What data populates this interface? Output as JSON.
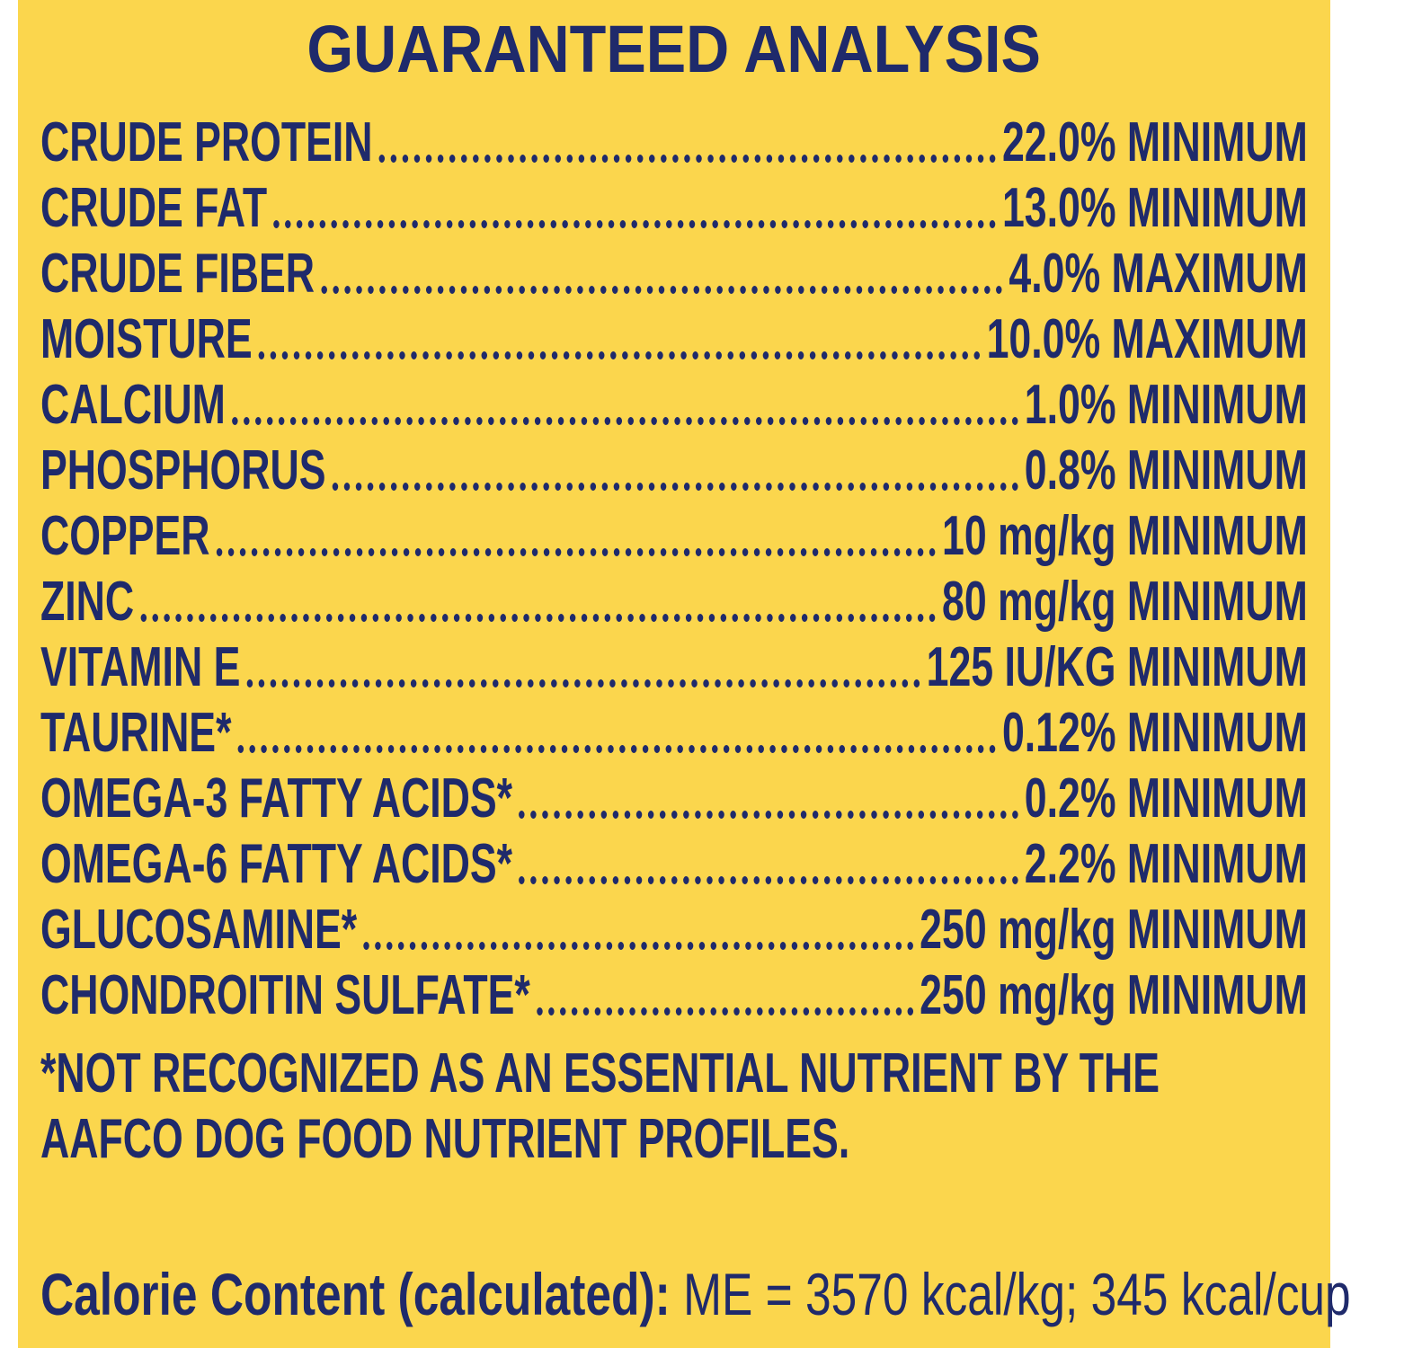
{
  "title": "GUARANTEED ANALYSIS",
  "rows": [
    {
      "name": "CRUDE PROTEIN",
      "value": "22.0% MINIMUM"
    },
    {
      "name": "CRUDE FAT",
      "value": "13.0% MINIMUM"
    },
    {
      "name": "CRUDE FIBER",
      "value": "4.0% MAXIMUM"
    },
    {
      "name": "MOISTURE",
      "value": "10.0% MAXIMUM"
    },
    {
      "name": "CALCIUM",
      "value": "1.0% MINIMUM"
    },
    {
      "name": "PHOSPHORUS",
      "value": "0.8% MINIMUM"
    },
    {
      "name": "COPPER",
      "value": "10 mg/kg MINIMUM"
    },
    {
      "name": "ZINC",
      "value": "80 mg/kg MINIMUM"
    },
    {
      "name": "VITAMIN E",
      "value": "125 IU/KG MINIMUM"
    },
    {
      "name": "TAURINE*",
      "value": "0.12% MINIMUM"
    },
    {
      "name": "OMEGA-3 FATTY ACIDS*",
      "value": "0.2% MINIMUM"
    },
    {
      "name": "OMEGA-6 FATTY ACIDS*",
      "value": "2.2% MINIMUM"
    },
    {
      "name": "GLUCOSAMINE*",
      "value": "250 mg/kg MINIMUM"
    },
    {
      "name": "CHONDROITIN SULFATE*",
      "value": "250 mg/kg MINIMUM"
    }
  ],
  "footnote": "*NOT RECOGNIZED AS AN ESSENTIAL NUTRIENT BY THE AAFCO DOG FOOD NUTRIENT PROFILES.",
  "calorie": {
    "label": "Calorie Content (calculated):",
    "text": "ME = 3570 kcal/kg; 345 kcal/cup"
  }
}
